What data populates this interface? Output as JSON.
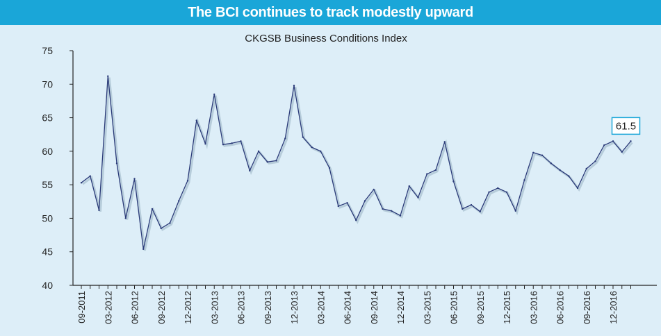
{
  "header": {
    "title": "The BCI continues to track modestly upward"
  },
  "colors": {
    "header_bg": "#1aa6d8",
    "background": "#ddeef8",
    "line": "#2a3a78",
    "callout_border": "#1aa6d8"
  },
  "chart_data": {
    "type": "line",
    "title": "CKGSB Business Conditions Index",
    "xlabel": "",
    "ylabel": "",
    "ylim": [
      40,
      75
    ],
    "yticks": [
      40,
      45,
      50,
      55,
      60,
      65,
      70,
      75
    ],
    "grid": false,
    "x_tick_labels": [
      "09-2011",
      "03-2012",
      "06-2012",
      "09-2012",
      "12-2012",
      "03-2013",
      "06-2013",
      "09-2013",
      "12-2013",
      "03-2014",
      "06-2014",
      "09-2014",
      "12-2014",
      "03-2015",
      "06-2015",
      "09-2015",
      "12-2015",
      "03-2016",
      "06-2016",
      "09-2016",
      "12-2016"
    ],
    "series": [
      {
        "values": [
          55.3,
          56.3,
          51.2,
          71.2,
          58.2,
          50.0,
          55.9,
          45.4,
          51.4,
          48.5,
          49.3,
          52.6,
          55.6,
          64.6,
          61.1,
          68.5,
          61.0,
          61.2,
          61.5,
          57.1,
          60.0,
          58.4,
          58.6,
          61.9,
          69.8,
          62.1,
          60.6,
          60.0,
          57.5,
          51.8,
          52.3,
          49.7,
          52.6,
          54.3,
          51.4,
          51.1,
          50.4,
          54.8,
          53.1,
          56.6,
          57.2,
          61.4,
          55.5,
          51.4,
          52.0,
          51.0,
          53.9,
          54.5,
          53.9,
          51.1,
          55.7,
          59.8,
          59.4,
          58.2,
          57.2,
          56.3,
          54.5,
          57.4,
          58.5,
          60.9,
          61.5,
          59.9,
          61.5
        ]
      }
    ],
    "annotations": [
      {
        "text": "61.5",
        "at": "last"
      }
    ]
  }
}
